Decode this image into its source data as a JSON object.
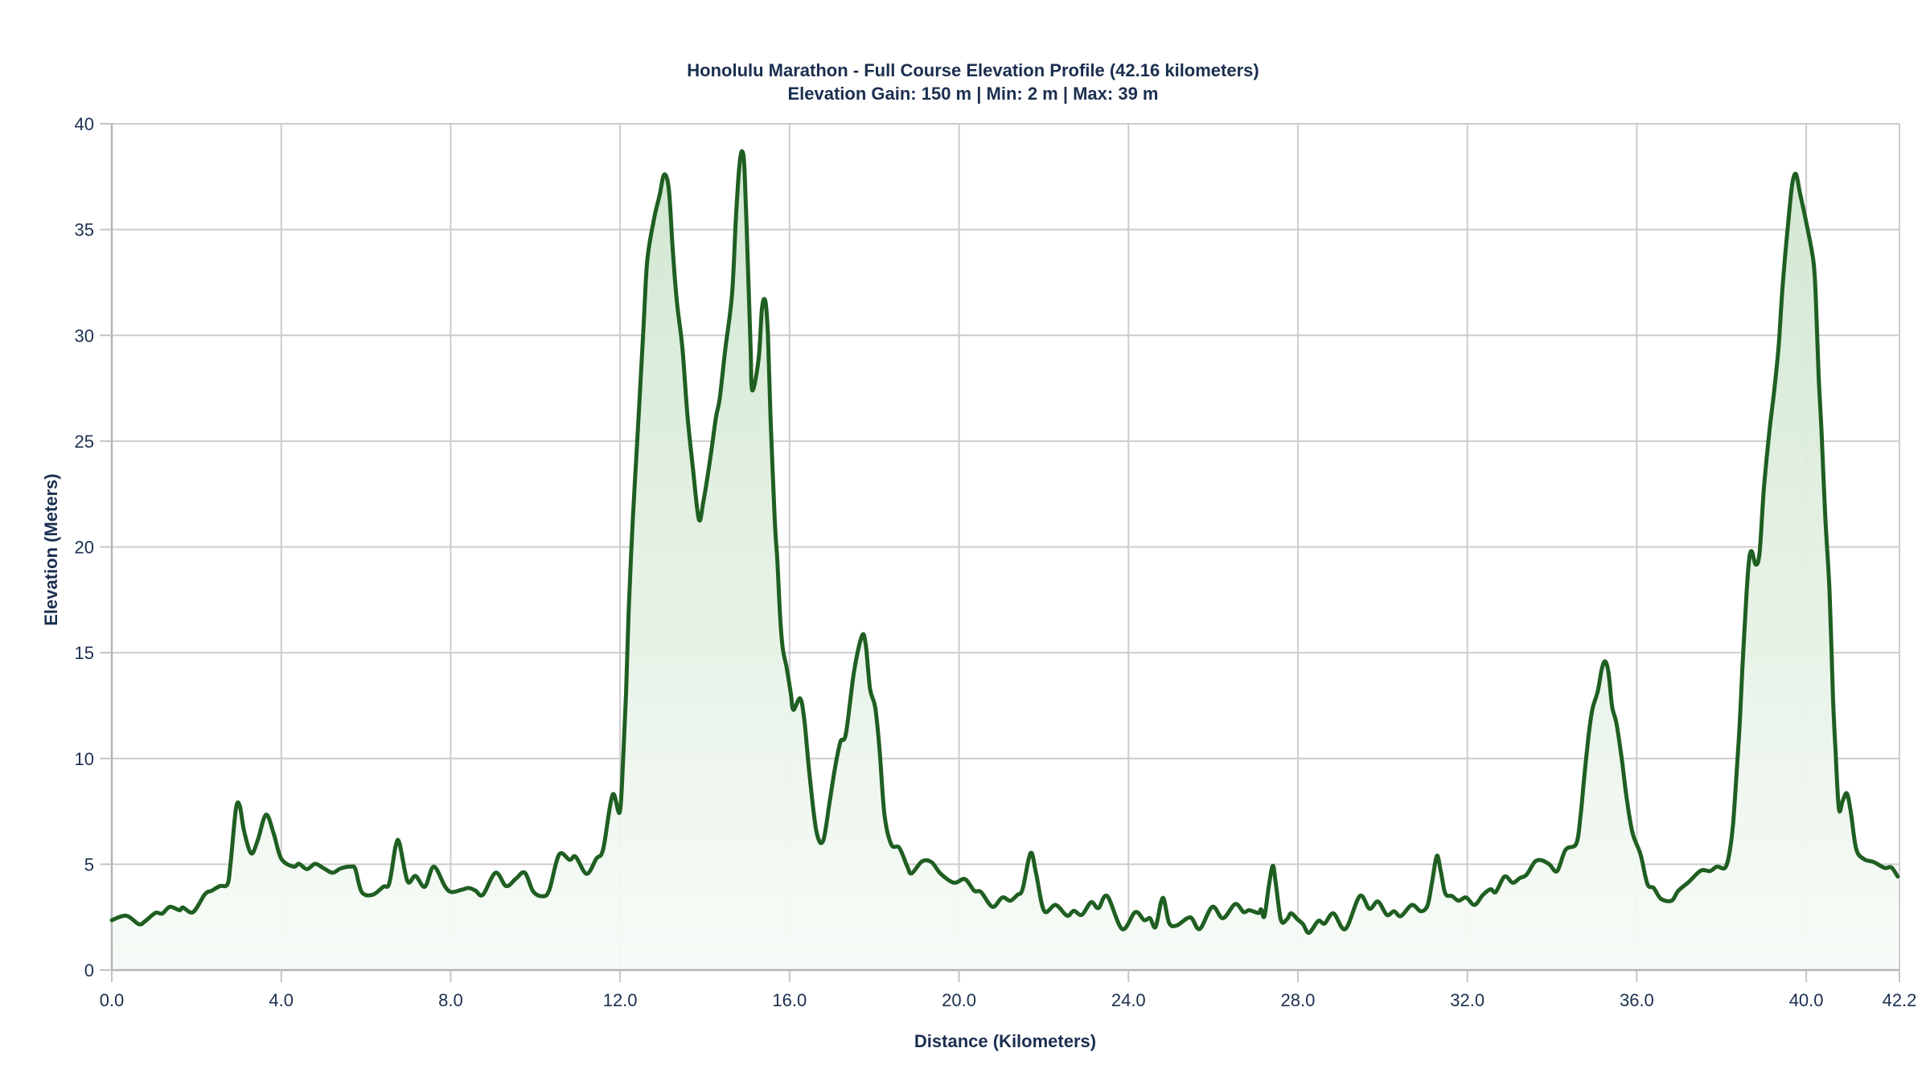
{
  "chart": {
    "title_line1": "Honolulu Marathon - Full Course Elevation Profile (42.16 kilometers)",
    "title_line2": "Elevation Gain: 150 m | Min: 2 m | Max: 39 m",
    "xlabel": "Distance (Kilometers)",
    "ylabel": "Elevation (Meters)",
    "line_color": "#1f5f22",
    "fill_color_top": "#cfe6cf",
    "fill_color_bottom": "#f7fbf7",
    "grid_color": "#cccccc"
  },
  "chart_data": {
    "type": "area",
    "title": "Honolulu Marathon - Full Course Elevation Profile (42.16 kilometers)",
    "subtitle": "Elevation Gain: 150 m | Min: 2 m | Max: 39 m",
    "xlabel": "Distance (Kilometers)",
    "ylabel": "Elevation (Meters)",
    "xlim": [
      0,
      42.2
    ],
    "ylim": [
      0,
      40
    ],
    "x_ticks": [
      "0.0",
      "4.0",
      "8.0",
      "12.0",
      "16.0",
      "20.0",
      "24.0",
      "28.0",
      "32.0",
      "36.0",
      "40.0",
      "42.2"
    ],
    "x_tick_values": [
      0,
      4,
      8,
      12,
      16,
      20,
      24,
      28,
      32,
      36,
      40,
      42.2
    ],
    "y_ticks": [
      "0",
      "5",
      "10",
      "15",
      "20",
      "25",
      "30",
      "35",
      "40"
    ],
    "y_tick_values": [
      0,
      5,
      10,
      15,
      20,
      25,
      30,
      35,
      40
    ],
    "grid": true,
    "legend": null,
    "series": [
      {
        "name": "Elevation",
        "x": [
          0.0,
          0.34,
          0.64,
          0.78,
          1.03,
          1.19,
          1.37,
          1.6,
          1.68,
          1.92,
          2.2,
          2.36,
          2.55,
          2.73,
          2.8,
          2.93,
          3.02,
          3.12,
          3.29,
          3.44,
          3.64,
          3.82,
          4.0,
          4.29,
          4.42,
          4.61,
          4.8,
          4.99,
          5.21,
          5.4,
          5.65,
          5.75,
          5.9,
          6.16,
          6.41,
          6.55,
          6.7,
          6.79,
          6.98,
          7.17,
          7.39,
          7.6,
          7.87,
          8.02,
          8.25,
          8.43,
          8.59,
          8.76,
          9.06,
          9.31,
          9.54,
          9.75,
          9.95,
          10.18,
          10.33,
          10.56,
          10.81,
          10.95,
          11.21,
          11.44,
          11.6,
          11.82,
          11.99,
          12.07,
          12.14,
          12.2,
          12.3,
          12.42,
          12.55,
          12.64,
          12.8,
          12.93,
          13.04,
          13.15,
          13.24,
          13.34,
          13.47,
          13.59,
          13.72,
          13.86,
          13.97,
          14.13,
          14.26,
          14.35,
          14.48,
          14.64,
          14.73,
          14.81,
          14.88,
          14.94,
          15.02,
          15.08,
          15.12,
          15.27,
          15.35,
          15.43,
          15.49,
          15.55,
          15.65,
          15.71,
          15.78,
          15.84,
          15.93,
          16.03,
          16.09,
          16.25,
          16.35,
          16.47,
          16.63,
          16.79,
          16.95,
          17.07,
          17.2,
          17.33,
          17.52,
          17.71,
          17.8,
          17.9,
          18.02,
          18.12,
          18.24,
          18.4,
          18.59,
          18.78,
          18.88,
          19.13,
          19.35,
          19.57,
          19.88,
          20.14,
          20.36,
          20.52,
          20.79,
          21.02,
          21.21,
          21.38,
          21.5,
          21.69,
          21.82,
          22.01,
          22.28,
          22.55,
          22.71,
          22.9,
          23.12,
          23.29,
          23.5,
          23.85,
          24.16,
          24.37,
          24.51,
          24.64,
          24.81,
          24.96,
          25.14,
          25.46,
          25.68,
          25.98,
          26.23,
          26.52,
          26.72,
          26.85,
          27.07,
          27.13,
          27.21,
          27.32,
          27.41,
          27.48,
          27.6,
          27.74,
          27.84,
          27.99,
          28.12,
          28.26,
          28.48,
          28.63,
          28.84,
          29.12,
          29.46,
          29.69,
          29.89,
          30.1,
          30.27,
          30.43,
          30.69,
          30.9,
          31.06,
          31.17,
          31.28,
          31.37,
          31.48,
          31.64,
          31.79,
          31.97,
          32.17,
          32.37,
          32.55,
          32.67,
          32.88,
          33.07,
          33.24,
          33.4,
          33.59,
          33.75,
          33.94,
          34.12,
          34.32,
          34.57,
          34.67,
          34.76,
          34.86,
          34.95,
          35.08,
          35.17,
          35.25,
          35.33,
          35.42,
          35.52,
          35.65,
          35.76,
          35.9,
          36.09,
          36.25,
          36.4,
          36.57,
          36.82,
          36.98,
          37.23,
          37.51,
          37.73,
          37.89,
          38.08,
          38.18,
          38.27,
          38.35,
          38.43,
          38.49,
          38.59,
          38.65,
          38.71,
          38.81,
          38.9,
          39.0,
          39.13,
          39.25,
          39.35,
          39.44,
          39.57,
          39.67,
          39.76,
          39.85,
          40.01,
          40.17,
          40.23,
          40.29,
          40.36,
          40.45,
          40.55,
          40.63,
          40.69,
          40.77,
          40.86,
          40.96,
          41.05,
          41.18,
          41.37,
          41.59,
          41.85,
          42.01,
          42.16
        ],
        "values": [
          2.36,
          2.57,
          2.17,
          2.3,
          2.7,
          2.67,
          2.99,
          2.83,
          2.96,
          2.74,
          3.59,
          3.75,
          3.97,
          4.05,
          4.96,
          7.6,
          7.77,
          6.6,
          5.52,
          6.1,
          7.34,
          6.47,
          5.27,
          4.89,
          5.02,
          4.77,
          5.02,
          4.83,
          4.6,
          4.8,
          4.89,
          4.77,
          3.69,
          3.56,
          3.94,
          4.1,
          5.84,
          6.0,
          4.2,
          4.45,
          3.94,
          4.89,
          3.94,
          3.69,
          3.79,
          3.88,
          3.75,
          3.56,
          4.6,
          3.97,
          4.32,
          4.6,
          3.71,
          3.49,
          3.8,
          5.46,
          5.21,
          5.36,
          4.55,
          5.27,
          5.72,
          8.28,
          7.46,
          9.9,
          13.07,
          16.9,
          21.3,
          25.6,
          30.3,
          33.5,
          35.5,
          36.6,
          37.6,
          36.9,
          34.1,
          31.6,
          29.4,
          26.2,
          23.7,
          21.3,
          22.2,
          24.2,
          26.1,
          27.0,
          29.3,
          31.9,
          35.4,
          37.9,
          38.7,
          37.7,
          33.1,
          29.4,
          27.4,
          28.9,
          31.3,
          31.6,
          30.0,
          26.2,
          21.3,
          19.4,
          16.6,
          15.2,
          14.3,
          13.07,
          12.3,
          12.84,
          11.8,
          9.27,
          6.6,
          6.1,
          8.0,
          9.52,
          10.79,
          11.17,
          14.08,
          15.8,
          15.35,
          13.3,
          12.43,
          10.53,
          7.36,
          5.94,
          5.78,
          4.89,
          4.57,
          5.14,
          5.1,
          4.55,
          4.13,
          4.3,
          3.75,
          3.69,
          2.99,
          3.43,
          3.28,
          3.56,
          3.82,
          5.53,
          4.57,
          2.8,
          3.08,
          2.57,
          2.8,
          2.61,
          3.21,
          2.93,
          3.5,
          1.94,
          2.74,
          2.36,
          2.45,
          2.04,
          3.41,
          2.23,
          2.11,
          2.49,
          1.94,
          2.99,
          2.45,
          3.12,
          2.74,
          2.83,
          2.7,
          2.87,
          2.55,
          4.07,
          4.93,
          4.07,
          2.36,
          2.4,
          2.68,
          2.4,
          2.17,
          1.76,
          2.32,
          2.2,
          2.68,
          1.94,
          3.5,
          2.9,
          3.24,
          2.61,
          2.78,
          2.55,
          3.08,
          2.78,
          3.06,
          4.2,
          5.4,
          4.7,
          3.62,
          3.5,
          3.28,
          3.43,
          3.08,
          3.56,
          3.82,
          3.69,
          4.42,
          4.13,
          4.35,
          4.51,
          5.11,
          5.19,
          4.99,
          4.68,
          5.69,
          5.97,
          7.24,
          9.14,
          11.04,
          12.31,
          13.19,
          14.2,
          14.59,
          14.08,
          12.43,
          11.67,
          9.9,
          8.13,
          6.48,
          5.46,
          4.07,
          3.88,
          3.37,
          3.28,
          3.75,
          4.17,
          4.7,
          4.68,
          4.89,
          4.83,
          5.46,
          6.86,
          9.14,
          11.67,
          14.2,
          17.76,
          19.36,
          19.8,
          19.16,
          19.77,
          22.75,
          25.47,
          27.5,
          29.54,
          32.26,
          35.25,
          37.15,
          37.62,
          36.74,
          35.25,
          33.48,
          31.58,
          28.19,
          25.47,
          21.4,
          17.87,
          12.94,
          10.41,
          7.62,
          8.0,
          8.35,
          7.49,
          5.72,
          5.24,
          5.11,
          4.83,
          4.85,
          4.42
        ]
      }
    ]
  }
}
